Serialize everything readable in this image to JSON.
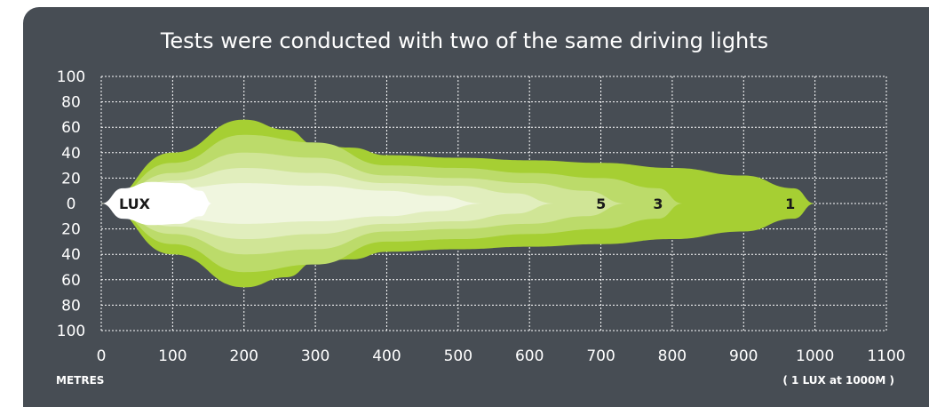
{
  "chart_data": {
    "type": "area",
    "title": "Tests were conducted with two of the same driving lights",
    "xlabel": "METRES",
    "x_ticks": [
      "0",
      "100",
      "200",
      "300",
      "400",
      "500",
      "600",
      "700",
      "800",
      "900",
      "1000",
      "1100"
    ],
    "y_ticks": [
      "100",
      "80",
      "60",
      "40",
      "20",
      "0",
      "20",
      "40",
      "60",
      "80",
      "100"
    ],
    "xlim": [
      0,
      1100
    ],
    "ylim": [
      -100,
      100
    ],
    "grid": true,
    "note": "( 1 LUX at 1000M )",
    "center_label": "LUX",
    "series": [
      {
        "name": "1",
        "color": "#a6cf33",
        "x": [
          0,
          100,
          200,
          260,
          300,
          350,
          400,
          500,
          600,
          700,
          800,
          900,
          970,
          1000
        ],
        "half_width": [
          0,
          40,
          66,
          58,
          46,
          44,
          38,
          36,
          34,
          32,
          28,
          22,
          12,
          0
        ]
      },
      {
        "name": "3",
        "color": "#bcdb6a",
        "x": [
          0,
          100,
          200,
          300,
          400,
          500,
          600,
          700,
          780,
          815
        ],
        "half_width": [
          0,
          32,
          54,
          48,
          30,
          28,
          24,
          20,
          12,
          0
        ]
      },
      {
        "name": "5",
        "color": "#d0e596",
        "x": [
          0,
          100,
          200,
          300,
          400,
          500,
          600,
          680,
          735
        ],
        "half_width": [
          0,
          24,
          40,
          36,
          22,
          20,
          16,
          10,
          0
        ]
      },
      {
        "name": "",
        "color": "#e1eebd",
        "x": [
          0,
          100,
          200,
          300,
          400,
          500,
          580,
          635
        ],
        "half_width": [
          0,
          18,
          28,
          24,
          16,
          14,
          8,
          0
        ]
      },
      {
        "name": "",
        "color": "#f0f6df",
        "x": [
          0,
          100,
          200,
          300,
          400,
          470,
          535
        ],
        "half_width": [
          0,
          12,
          16,
          14,
          10,
          6,
          0
        ]
      },
      {
        "name": "LUX",
        "color": "#ffffff",
        "x": [
          0,
          30,
          70,
          110,
          140,
          155
        ],
        "half_width": [
          0,
          12,
          17,
          16,
          10,
          0
        ]
      }
    ]
  }
}
